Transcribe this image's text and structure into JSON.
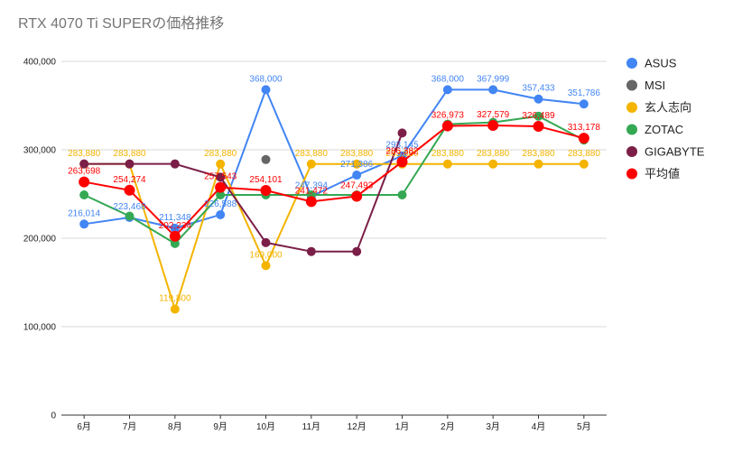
{
  "chart_data": {
    "type": "line",
    "title": "RTX 4070 Ti SUPERの価格推移",
    "xlabel": "",
    "ylabel": "",
    "categories": [
      "6月",
      "7月",
      "8月",
      "9月",
      "10月",
      "11月",
      "12月",
      "1月",
      "2月",
      "3月",
      "4月",
      "5月"
    ],
    "ylim": [
      0,
      400000
    ],
    "yticks": [
      "0",
      "100,000",
      "200,000",
      "300,000",
      "400,000"
    ],
    "grid": true,
    "legend": "right",
    "series": [
      {
        "name": "ASUS",
        "color": "#4285f4",
        "values": [
          216014,
          223468,
          211348,
          226588,
          368000,
          247394,
          271386,
          293145,
          368000,
          367999,
          357433,
          351786
        ],
        "labels": [
          "216,014",
          "223,468",
          "211,348",
          "226,588",
          "368,000",
          "247,394",
          "271,386",
          "293,145",
          "368,000",
          "367,999",
          "357,433",
          "351,786"
        ]
      },
      {
        "name": "MSI",
        "color": "#666666",
        "values": [
          null,
          null,
          null,
          null,
          289000,
          null,
          null,
          null,
          null,
          null,
          null,
          null
        ],
        "labels": [
          null,
          null,
          null,
          null,
          null,
          null,
          null,
          null,
          null,
          null,
          null,
          null
        ]
      },
      {
        "name": "玄人志向",
        "color": "#f4b400",
        "values": [
          283880,
          283880,
          119800,
          283880,
          169000,
          283880,
          283880,
          283880,
          283880,
          283880,
          283880,
          283880
        ],
        "labels": [
          "283,880",
          "283,880",
          "119,800",
          "283,880",
          "169,000",
          "283,880",
          "283,880",
          "283,880",
          "283,880",
          "283,880",
          "283,880",
          "283,880"
        ]
      },
      {
        "name": "ZOTAC",
        "color": "#34a853",
        "values": [
          249000,
          225000,
          194000,
          249000,
          249000,
          249000,
          249000,
          249000,
          329000,
          331000,
          338000,
          311000
        ],
        "labels": [
          null,
          null,
          null,
          null,
          null,
          null,
          null,
          null,
          null,
          null,
          null,
          null
        ]
      },
      {
        "name": "GIGABYTE",
        "color": "#7b1e48",
        "values": [
          284000,
          284000,
          284000,
          269000,
          195000,
          185000,
          185000,
          319000,
          null,
          null,
          null,
          null
        ],
        "labels": [
          null,
          null,
          null,
          null,
          null,
          null,
          null,
          null,
          null,
          null,
          null,
          null
        ]
      },
      {
        "name": "平均値",
        "color": "#ff0000",
        "values": [
          263698,
          254274,
          202234,
          257543,
          254101,
          241472,
          247493,
          286382,
          326973,
          327579,
          326489,
          313178
        ],
        "labels": [
          "263,698",
          "254,274",
          "202,234",
          "257,543",
          "254,101",
          "241,472",
          "247,493",
          "286,382",
          "326,973",
          "327,579",
          "326,489",
          "313,178"
        ]
      }
    ]
  }
}
